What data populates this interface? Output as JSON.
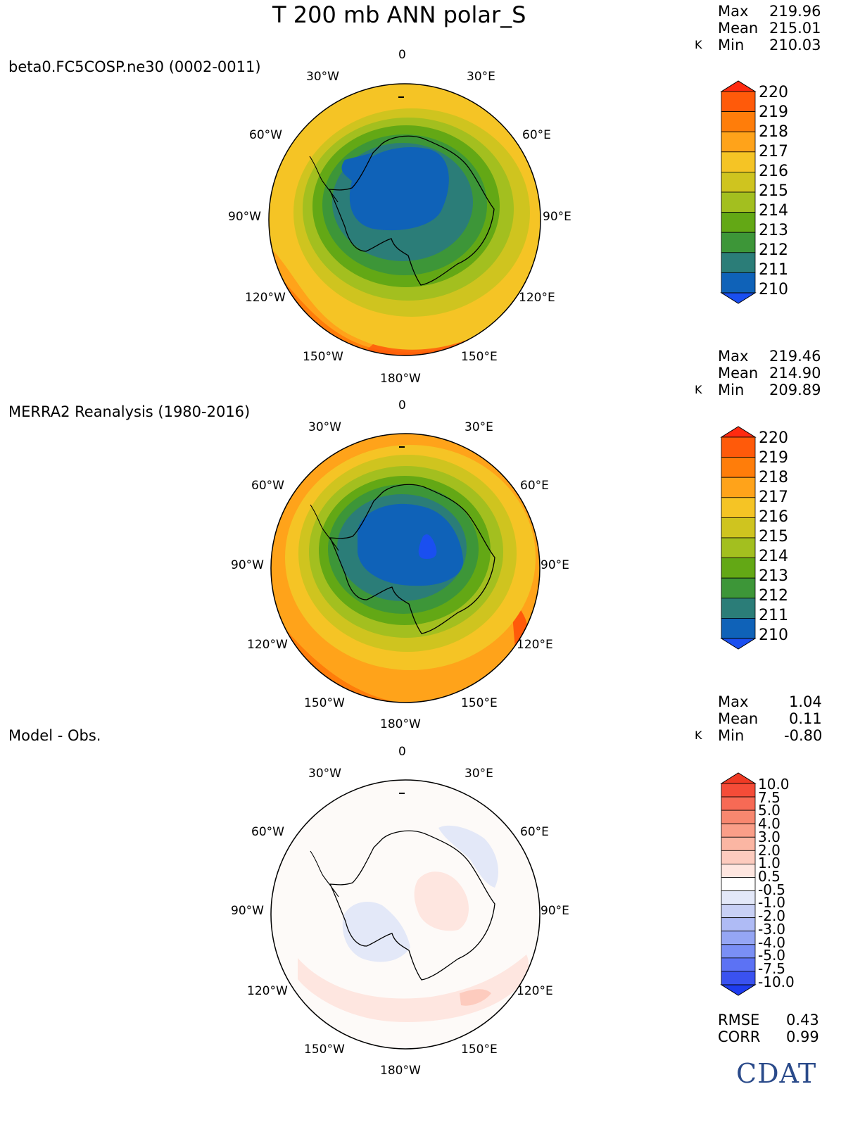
{
  "title": "T 200 mb ANN polar_S",
  "units": "K",
  "lon_labels": [
    "0",
    "30°E",
    "60°E",
    "90°E",
    "120°E",
    "150°E",
    "180°W",
    "150°W",
    "120°W",
    "90°W",
    "60°W",
    "30°W"
  ],
  "panels": [
    {
      "label": "beta0.FC5COSP.ne30 (0002-0011)",
      "stats": {
        "max_label": "Max",
        "max": "219.96",
        "mean_label": "Mean",
        "mean": "215.01",
        "min_label": "Min",
        "min": "210.03"
      },
      "colorbar": "abs"
    },
    {
      "label": "MERRA2 Reanalysis (1980-2016)",
      "stats": {
        "max_label": "Max",
        "max": "219.46",
        "mean_label": "Mean",
        "mean": "214.90",
        "min_label": "Min",
        "min": "209.89"
      },
      "colorbar": "abs"
    },
    {
      "label": "Model - Obs.",
      "stats": {
        "max_label": "Max",
        "max": "1.04",
        "mean_label": "Mean",
        "mean": "0.11",
        "min_label": "Min",
        "min": "-0.80"
      },
      "colorbar": "diff",
      "metrics": {
        "rmse_label": "RMSE",
        "rmse": "0.43",
        "corr_label": "CORR",
        "corr": "0.99"
      }
    }
  ],
  "colorbar_abs": {
    "ticks": [
      "220",
      "219",
      "218",
      "217",
      "216",
      "215",
      "214",
      "213",
      "212",
      "211",
      "210"
    ],
    "colors": [
      "#ff5a0a",
      "#ff7d0a",
      "#ffa31a",
      "#f5c425",
      "#cfc41f",
      "#a3bf1f",
      "#63a815",
      "#3d9638",
      "#2b7d78",
      "#0f62b8"
    ],
    "over_color": "#ff2a10",
    "under_color": "#1a4ff0"
  },
  "colorbar_diff": {
    "ticks": [
      "10.0",
      "7.5",
      "5.0",
      "4.0",
      "3.0",
      "2.0",
      "1.0",
      "0.5",
      "-0.5",
      "-1.0",
      "-2.0",
      "-3.0",
      "-4.0",
      "-5.0",
      "-7.5",
      "-10.0"
    ],
    "colors": [
      "#f54c38",
      "#f76a55",
      "#f8876f",
      "#fa9e88",
      "#fbb6a3",
      "#fdcbbe",
      "#fee6e0",
      "#ffffff",
      "#e3e8f8",
      "#c8d0f5",
      "#afbbf5",
      "#95a6f4",
      "#7a8ff5",
      "#5c72f4",
      "#3a52f0"
    ],
    "over_color": "#f03a24",
    "under_color": "#1e3cf0"
  },
  "logo": "CDAT"
}
